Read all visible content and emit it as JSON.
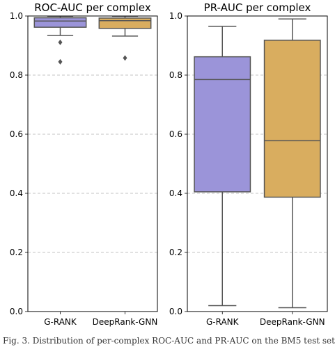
{
  "chart_data": [
    {
      "type": "box",
      "title": "ROC-AUC per complex",
      "xlabel": "",
      "ylabel": "",
      "ylim": [
        0.0,
        1.0
      ],
      "yticks": [
        "0.0",
        "0.2",
        "0.4",
        "0.6",
        "0.8",
        "1.0"
      ],
      "grid": "horizontal dashed",
      "categories": [
        "G-RANK",
        "DeepRank-GNN"
      ],
      "series": [
        {
          "category": "G-RANK",
          "color": "#9b94d9",
          "whisker_low": 0.934,
          "q1": 0.962,
          "median": 0.983,
          "q3": 0.994,
          "whisker_high": 0.999,
          "outliers": [
            0.911,
            0.845
          ]
        },
        {
          "category": "DeepRank-GNN",
          "color": "#d9ad5f",
          "whisker_low": 0.932,
          "q1": 0.958,
          "median": 0.984,
          "q3": 0.993,
          "whisker_high": 0.999,
          "outliers": [
            0.858
          ]
        }
      ]
    },
    {
      "type": "box",
      "title": "PR-AUC per complex",
      "xlabel": "",
      "ylabel": "",
      "ylim": [
        0.0,
        1.0
      ],
      "yticks": [
        "0.0",
        "0.2",
        "0.4",
        "0.6",
        "0.8",
        "1.0"
      ],
      "grid": "horizontal dashed",
      "categories": [
        "G-RANK",
        "DeepRank-GNN"
      ],
      "series": [
        {
          "category": "G-RANK",
          "color": "#9b94d9",
          "whisker_low": 0.02,
          "q1": 0.405,
          "median": 0.785,
          "q3": 0.862,
          "whisker_high": 0.965,
          "outliers": []
        },
        {
          "category": "DeepRank-GNN",
          "color": "#d9ad5f",
          "whisker_low": 0.013,
          "q1": 0.387,
          "median": 0.578,
          "q3": 0.918,
          "whisker_high": 0.99,
          "outliers": []
        }
      ]
    }
  ],
  "caption": "Fig. 3. Distribution of per-complex ROC-AUC and PR-AUC on the BM5 test set"
}
